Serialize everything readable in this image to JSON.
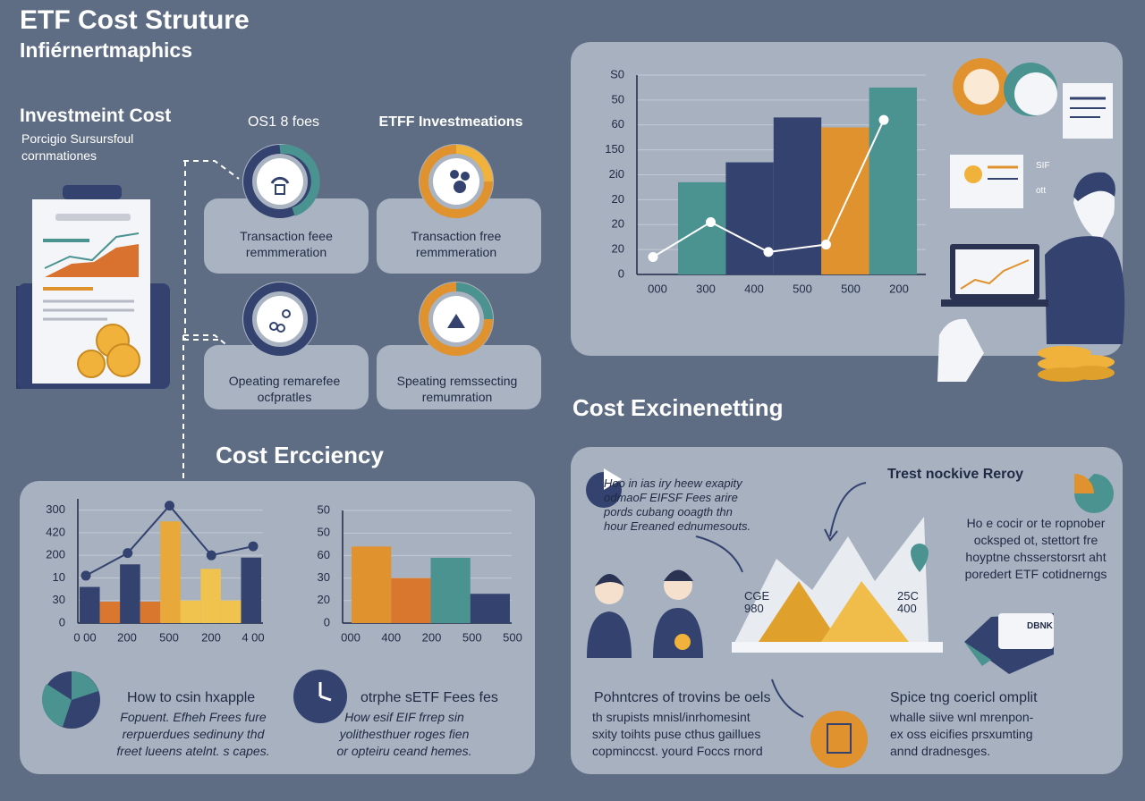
{
  "header": {
    "title": "ETF Cost Struture",
    "subtitle": "Infiérnertmaphics"
  },
  "intro": {
    "title": "Investmeint Cost",
    "lines": [
      "Porcigio Sursursfoul",
      "cornmationes"
    ]
  },
  "column_labels": [
    "OS1 8 foes",
    "ETFF Investmeations"
  ],
  "cards": [
    {
      "lines": [
        "Transaction feee",
        "remmmeration"
      ]
    },
    {
      "lines": [
        "Transaction free",
        "remmmeration"
      ]
    },
    {
      "lines": [
        "Opeating remarefee",
        "ocfpratles"
      ]
    },
    {
      "lines": [
        "Speating remssecting",
        "remumration"
      ]
    }
  ],
  "section_titles": [
    "Cost Ercciency",
    "Cost Excinenetting"
  ],
  "side_tags": [
    "SIF",
    "ott"
  ],
  "efficiency_notes": [
    {
      "title": "How to csin hxapple",
      "lines": [
        "Fopuent. Efheh Frees fure",
        "rerpuerdues sedinuny thd",
        "freet lueens atelnt. s capes."
      ]
    },
    {
      "title": "otrphe sETF Fees fes",
      "lines": [
        "How esif EIF frrep sin",
        "yolithesthuer roges fien",
        "or opteiru ceand hemes."
      ]
    }
  ],
  "netting": {
    "intro": [
      "Hoo in ias iry heew exapity",
      "odmaoF EIFSF Fees arire",
      "pords cubang ooagth thn",
      "hour Ereaned ednumesouts."
    ],
    "chart_title": "Trest nockive Reroy",
    "side": [
      "Ho e cocir or te ropnober",
      "ocksped ot, stettort fre",
      "hoyptne chsserstorsrt aht",
      "poredert ETF cotidnerngs"
    ],
    "peaks": [
      [
        "CGE",
        "980"
      ],
      [
        "25C",
        "400"
      ]
    ],
    "card_label": "DBNK",
    "notes": [
      {
        "title": "Pohntcres of trovins be oels",
        "lines": [
          "th srupists mnisl/inrhomesint",
          "sxity toihts puse cthus gaillues",
          "copminccst. yourd Foccs rnord"
        ]
      },
      {
        "title": "Spice tng coericl omplit",
        "lines": [
          "whalle siive wnl mrenpon-",
          "ex oss eicifies prsxumting",
          "annd dradnesges."
        ]
      }
    ]
  },
  "chart_data": [
    {
      "type": "bar",
      "grid": true,
      "ylim": [
        0,
        80
      ],
      "yticks": [
        0,
        {
          "value": 10,
          "label": "20"
        },
        20,
        {
          "value": 30,
          "label": "20"
        },
        {
          "value": 40,
          "label": "2i0"
        },
        {
          "value": 50,
          "label": "150"
        },
        60,
        {
          "value": 70,
          "label": "50"
        },
        {
          "value": 80,
          "label": "S0"
        }
      ],
      "x_labels": [
        "000",
        "300",
        "400",
        "500",
        "500",
        "200"
      ],
      "values": [
        37,
        45,
        63,
        59,
        75
      ],
      "colors": [
        "#4a9390",
        "#34426f",
        "#34426f",
        "#e0922f",
        "#4a9390"
      ],
      "line_values": [
        7,
        21,
        9,
        12,
        62
      ],
      "line_color": "#ffffff"
    },
    {
      "type": "bar",
      "grid": true,
      "ylim": [
        0,
        55
      ],
      "yticks": [
        0,
        {
          "value": 10,
          "label": "30"
        },
        {
          "value": 20,
          "label": "10"
        },
        {
          "value": 30,
          "label": "200"
        },
        {
          "value": 40,
          "label": "420"
        },
        {
          "value": 50,
          "label": "300"
        }
      ],
      "x_labels": [
        "0 00",
        "200",
        "500",
        "200",
        "4 00"
      ],
      "values": [
        16,
        9.5,
        26,
        9.5,
        45,
        10,
        24,
        10,
        29
      ],
      "colors": [
        "#34426f",
        "#d9772f",
        "#34426f",
        "#d9772f",
        "#e9a93a",
        "#f0c24e",
        "#f0c24e",
        "#f0c24e",
        "#34426f"
      ],
      "line_values": [
        21,
        31,
        52,
        30,
        34
      ],
      "line_color": "#34426f"
    },
    {
      "type": "bar",
      "grid": true,
      "ylim": [
        0,
        50
      ],
      "yticks": [
        0,
        {
          "value": 10,
          "label": "20"
        },
        {
          "value": 20,
          "label": "30"
        },
        {
          "value": 30,
          "label": "60"
        },
        {
          "value": 40,
          "label": "50"
        },
        50
      ],
      "x_labels": [
        "000",
        "400",
        "200",
        "500",
        "500"
      ],
      "values": [
        34,
        20,
        29,
        13
      ],
      "colors": [
        "#e0922f",
        "#d9772f",
        "#4a9390",
        "#34426f"
      ]
    }
  ]
}
